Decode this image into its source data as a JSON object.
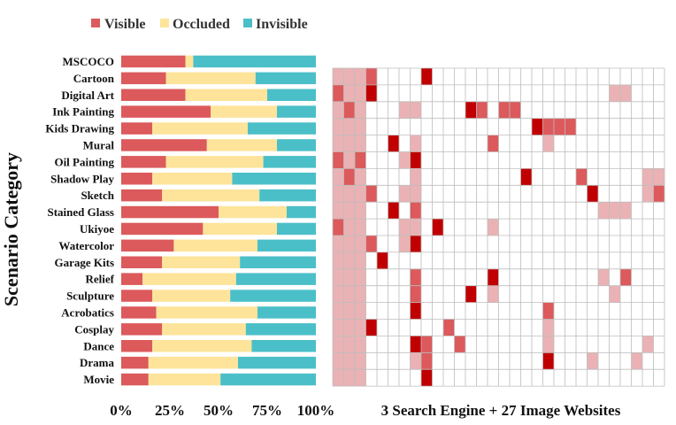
{
  "chart_data": [
    {
      "type": "bar",
      "stacked": true,
      "orientation": "horizontal",
      "ylabel": "Scenario Category",
      "xlabel": "",
      "xlim": [
        0,
        100
      ],
      "xticks": [
        "0%",
        "25%",
        "50%",
        "75%",
        "100%"
      ],
      "legend_position": "top",
      "categories": [
        "MSCOCO",
        "Cartoon",
        "Digital Art",
        "Ink Painting",
        "Kids Drawing",
        "Mural",
        "Oil Painting",
        "Shadow Play",
        "Sketch",
        "Stained Glass",
        "Ukiyoe",
        "Watercolor",
        "Garage Kits",
        "Relief",
        "Sculpture",
        "Acrobatics",
        "Cosplay",
        "Dance",
        "Drama",
        "Movie"
      ],
      "series": [
        {
          "name": "Visible",
          "color": "#dc5a5c",
          "values": [
            33,
            23,
            33,
            46,
            16,
            44,
            23,
            16,
            21,
            50,
            42,
            27,
            21,
            11,
            16,
            18,
            21,
            16,
            14,
            14
          ]
        },
        {
          "name": "Occluded",
          "color": "#fde49a",
          "values": [
            4,
            46,
            42,
            34,
            49,
            36,
            50,
            41,
            50,
            35,
            38,
            43,
            40,
            48,
            40,
            52,
            43,
            51,
            46,
            37
          ]
        },
        {
          "name": "Invisible",
          "color": "#4bbfc8",
          "values": [
            63,
            31,
            25,
            20,
            35,
            20,
            27,
            43,
            29,
            15,
            20,
            30,
            39,
            41,
            44,
            30,
            36,
            33,
            40,
            49
          ]
        }
      ]
    },
    {
      "type": "heatmap",
      "xlabel": "3 Search Engine + 27 Image Websites",
      "columns": 30,
      "rows": [
        "Cartoon",
        "Digital Art",
        "Ink Painting",
        "Kids Drawing",
        "Mural",
        "Oil Painting",
        "Shadow Play",
        "Sketch",
        "Stained Glass",
        "Ukiyoe",
        "Watercolor",
        "Garage Kits",
        "Relief",
        "Sculpture",
        "Acrobatics",
        "Cosplay",
        "Dance",
        "Drama",
        "Movie"
      ],
      "levels": {
        "0": "#ffffff",
        "1": "#eab2b4",
        "2": "#dc5a5c",
        "3": "#c00000"
      },
      "grid": [
        [
          1,
          1,
          1,
          2,
          0,
          0,
          0,
          0,
          3,
          0,
          0,
          0,
          0,
          0,
          0,
          0,
          0,
          0,
          0,
          0,
          0,
          0,
          0,
          0,
          0,
          0,
          0,
          0,
          0,
          0
        ],
        [
          2,
          1,
          1,
          3,
          0,
          0,
          0,
          0,
          0,
          0,
          0,
          0,
          0,
          0,
          0,
          0,
          0,
          0,
          0,
          0,
          0,
          0,
          0,
          0,
          0,
          1,
          1,
          0,
          0,
          0
        ],
        [
          1,
          2,
          1,
          0,
          0,
          0,
          1,
          1,
          0,
          0,
          0,
          0,
          3,
          2,
          0,
          2,
          2,
          0,
          0,
          0,
          0,
          0,
          0,
          0,
          0,
          0,
          0,
          0,
          0,
          0
        ],
        [
          1,
          1,
          1,
          0,
          0,
          0,
          0,
          0,
          0,
          0,
          0,
          0,
          0,
          0,
          0,
          0,
          0,
          0,
          3,
          2,
          2,
          2,
          0,
          0,
          0,
          0,
          0,
          0,
          0,
          0
        ],
        [
          1,
          1,
          1,
          0,
          0,
          3,
          0,
          1,
          0,
          0,
          0,
          0,
          0,
          0,
          2,
          0,
          0,
          0,
          0,
          1,
          0,
          0,
          0,
          0,
          0,
          0,
          0,
          0,
          0,
          0
        ],
        [
          2,
          1,
          2,
          0,
          0,
          0,
          1,
          3,
          0,
          0,
          0,
          0,
          0,
          0,
          0,
          0,
          0,
          0,
          0,
          0,
          0,
          0,
          0,
          0,
          0,
          0,
          0,
          0,
          0,
          0
        ],
        [
          1,
          2,
          1,
          0,
          0,
          0,
          0,
          1,
          0,
          0,
          0,
          0,
          0,
          0,
          0,
          0,
          0,
          3,
          0,
          0,
          0,
          0,
          2,
          0,
          0,
          0,
          0,
          0,
          1,
          1
        ],
        [
          1,
          1,
          1,
          2,
          0,
          0,
          1,
          1,
          0,
          0,
          0,
          0,
          0,
          0,
          0,
          0,
          0,
          0,
          0,
          0,
          0,
          0,
          0,
          3,
          0,
          0,
          0,
          0,
          1,
          2
        ],
        [
          1,
          1,
          1,
          0,
          0,
          3,
          0,
          2,
          0,
          0,
          0,
          0,
          0,
          0,
          0,
          0,
          0,
          0,
          0,
          0,
          0,
          0,
          0,
          0,
          1,
          1,
          1,
          0,
          0,
          0
        ],
        [
          2,
          1,
          1,
          0,
          0,
          0,
          1,
          1,
          0,
          3,
          0,
          0,
          0,
          0,
          1,
          0,
          0,
          0,
          0,
          0,
          0,
          0,
          0,
          0,
          0,
          0,
          0,
          0,
          0,
          0
        ],
        [
          1,
          1,
          1,
          2,
          0,
          0,
          1,
          3,
          0,
          0,
          0,
          0,
          0,
          0,
          0,
          0,
          0,
          0,
          0,
          0,
          0,
          0,
          0,
          0,
          0,
          0,
          0,
          0,
          0,
          0
        ],
        [
          1,
          1,
          1,
          0,
          3,
          0,
          0,
          0,
          0,
          0,
          0,
          0,
          0,
          0,
          0,
          0,
          0,
          0,
          0,
          0,
          0,
          0,
          0,
          0,
          0,
          0,
          0,
          0,
          0,
          0
        ],
        [
          1,
          1,
          1,
          0,
          0,
          0,
          0,
          2,
          0,
          0,
          0,
          0,
          0,
          0,
          3,
          0,
          0,
          0,
          0,
          0,
          0,
          0,
          0,
          0,
          1,
          0,
          2,
          0,
          0,
          0
        ],
        [
          1,
          1,
          1,
          0,
          0,
          0,
          0,
          2,
          0,
          0,
          0,
          0,
          3,
          0,
          1,
          0,
          0,
          0,
          0,
          0,
          0,
          0,
          0,
          0,
          0,
          1,
          0,
          0,
          0,
          0
        ],
        [
          1,
          1,
          1,
          0,
          0,
          0,
          0,
          3,
          0,
          0,
          0,
          0,
          0,
          0,
          0,
          0,
          0,
          0,
          0,
          2,
          0,
          0,
          0,
          0,
          0,
          0,
          0,
          0,
          0,
          0
        ],
        [
          1,
          1,
          1,
          3,
          0,
          0,
          0,
          0,
          0,
          0,
          2,
          0,
          0,
          0,
          0,
          0,
          0,
          0,
          0,
          1,
          0,
          0,
          0,
          0,
          0,
          0,
          0,
          0,
          0,
          0
        ],
        [
          1,
          1,
          1,
          0,
          0,
          0,
          0,
          3,
          2,
          0,
          0,
          2,
          0,
          0,
          0,
          0,
          0,
          0,
          0,
          1,
          0,
          0,
          0,
          0,
          0,
          0,
          0,
          0,
          1,
          0
        ],
        [
          1,
          1,
          1,
          0,
          0,
          0,
          0,
          1,
          2,
          0,
          0,
          0,
          0,
          0,
          0,
          0,
          0,
          0,
          0,
          3,
          0,
          0,
          0,
          1,
          0,
          0,
          0,
          1,
          0,
          0
        ],
        [
          1,
          1,
          1,
          0,
          0,
          0,
          0,
          0,
          3,
          0,
          0,
          0,
          0,
          0,
          0,
          0,
          0,
          0,
          0,
          0,
          0,
          0,
          0,
          0,
          0,
          0,
          0,
          0,
          0,
          0
        ]
      ]
    }
  ]
}
